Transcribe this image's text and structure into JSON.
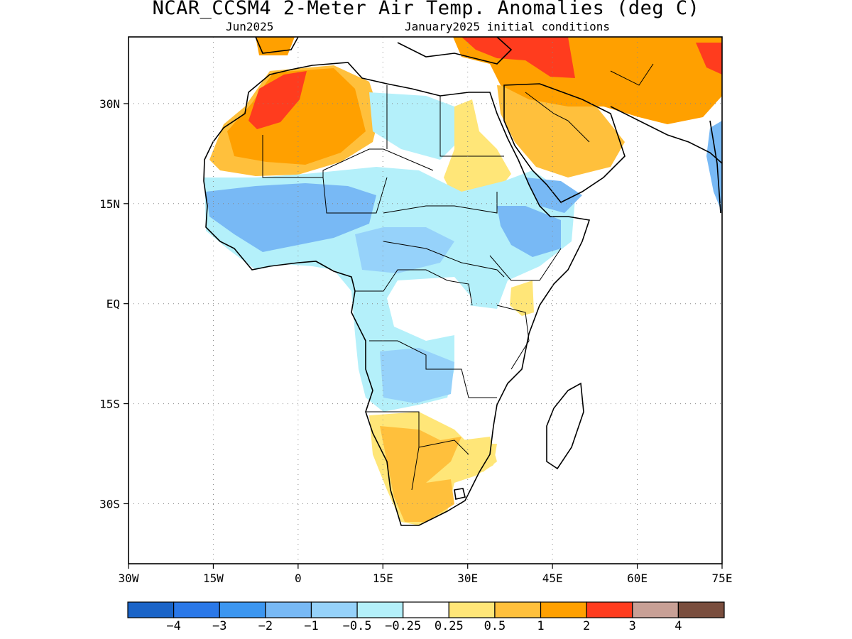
{
  "title": "NCAR_CCSM4 2-Meter Air Temp. Anomalies (deg C)",
  "subtitle_left": "Jun2025",
  "subtitle_right": "January2025 initial conditions",
  "map": {
    "lon_range": [
      -30,
      75
    ],
    "lat_range": [
      -39,
      40
    ],
    "lon_ticks": [
      {
        "value": -30,
        "label": "30W"
      },
      {
        "value": -15,
        "label": "15W"
      },
      {
        "value": 0,
        "label": "0"
      },
      {
        "value": 15,
        "label": "15E"
      },
      {
        "value": 30,
        "label": "30E"
      },
      {
        "value": 45,
        "label": "45E"
      },
      {
        "value": 60,
        "label": "60E"
      },
      {
        "value": 75,
        "label": "75E"
      }
    ],
    "lat_ticks": [
      {
        "value": 30,
        "label": "30N"
      },
      {
        "value": 15,
        "label": "15N"
      },
      {
        "value": 0,
        "label": "EQ"
      },
      {
        "value": -15,
        "label": "15S"
      },
      {
        "value": -30,
        "label": "30S"
      }
    ],
    "gridlines": "dotted"
  },
  "colorbar": {
    "colors": [
      "#1a64c8",
      "#2a78e8",
      "#3c96f0",
      "#78b9f5",
      "#96d2fa",
      "#b4f0fa",
      "#ffffff",
      "#ffe678",
      "#ffc03c",
      "#ffa000",
      "#ff3c1e",
      "#c8a096",
      "#7a4e3e"
    ],
    "labels": [
      "-4",
      "-3",
      "-2",
      "-1",
      "-0.5",
      "-0.25",
      "0.25",
      "0.5",
      "1",
      "2",
      "3",
      "4"
    ]
  },
  "anomaly_regions": [
    {
      "level": "-1",
      "color": "#78b9f5",
      "area": "Sahel / West Africa"
    },
    {
      "level": "-1",
      "color": "#78b9f5",
      "area": "Ethiopia"
    },
    {
      "level": "-1",
      "color": "#78b9f5",
      "area": "Yemen"
    },
    {
      "level": "-0.5",
      "color": "#96d2fa",
      "area": "Central Africa"
    },
    {
      "level": "-0.5",
      "color": "#96d2fa",
      "area": "Angola / Zambia"
    },
    {
      "level": "0.5",
      "color": "#ffe678",
      "area": "Sudan"
    },
    {
      "level": "0.5",
      "color": "#ffe678",
      "area": "Southern Africa"
    },
    {
      "level": "0.5",
      "color": "#ffe678",
      "area": "Kenya"
    },
    {
      "level": "1",
      "color": "#ffc03c",
      "area": "Sahara"
    },
    {
      "level": "1",
      "color": "#ffc03c",
      "area": "Arabian Peninsula"
    },
    {
      "level": "1",
      "color": "#ffc03c",
      "area": "South Africa / Namibia"
    },
    {
      "level": "2",
      "color": "#ffa000",
      "area": "Northwest Africa"
    },
    {
      "level": "2",
      "color": "#ffa000",
      "area": "Middle East / Iran"
    },
    {
      "level": "3",
      "color": "#ff3c1e",
      "area": "Morocco"
    },
    {
      "level": "3",
      "color": "#ff3c1e",
      "area": "Turkey / Caucasus"
    }
  ]
}
